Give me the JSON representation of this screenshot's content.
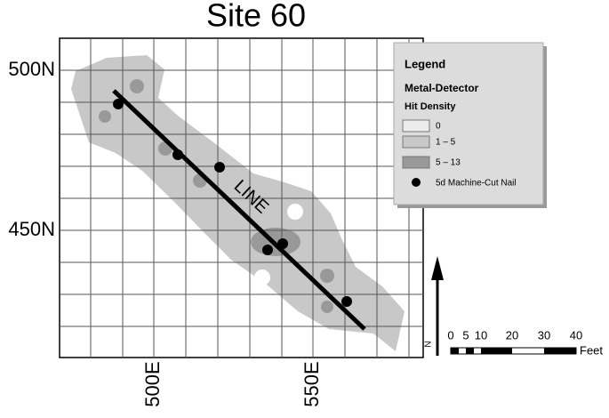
{
  "title": "Site 60",
  "axes": {
    "y_labels": [
      "500N",
      "450N"
    ],
    "x_labels": [
      "500E",
      "550E"
    ]
  },
  "line_label": "LINE",
  "legend": {
    "title": "Legend",
    "subtitle": "Metal-Detector",
    "heading": "Hit Density",
    "items": [
      "0",
      "1 – 5",
      "5 – 13",
      "5d Machine-Cut Nail"
    ]
  },
  "north": "N",
  "scale": {
    "ticks": [
      "0",
      "5",
      "10",
      "20",
      "30",
      "40"
    ],
    "unit": "Feet"
  }
}
